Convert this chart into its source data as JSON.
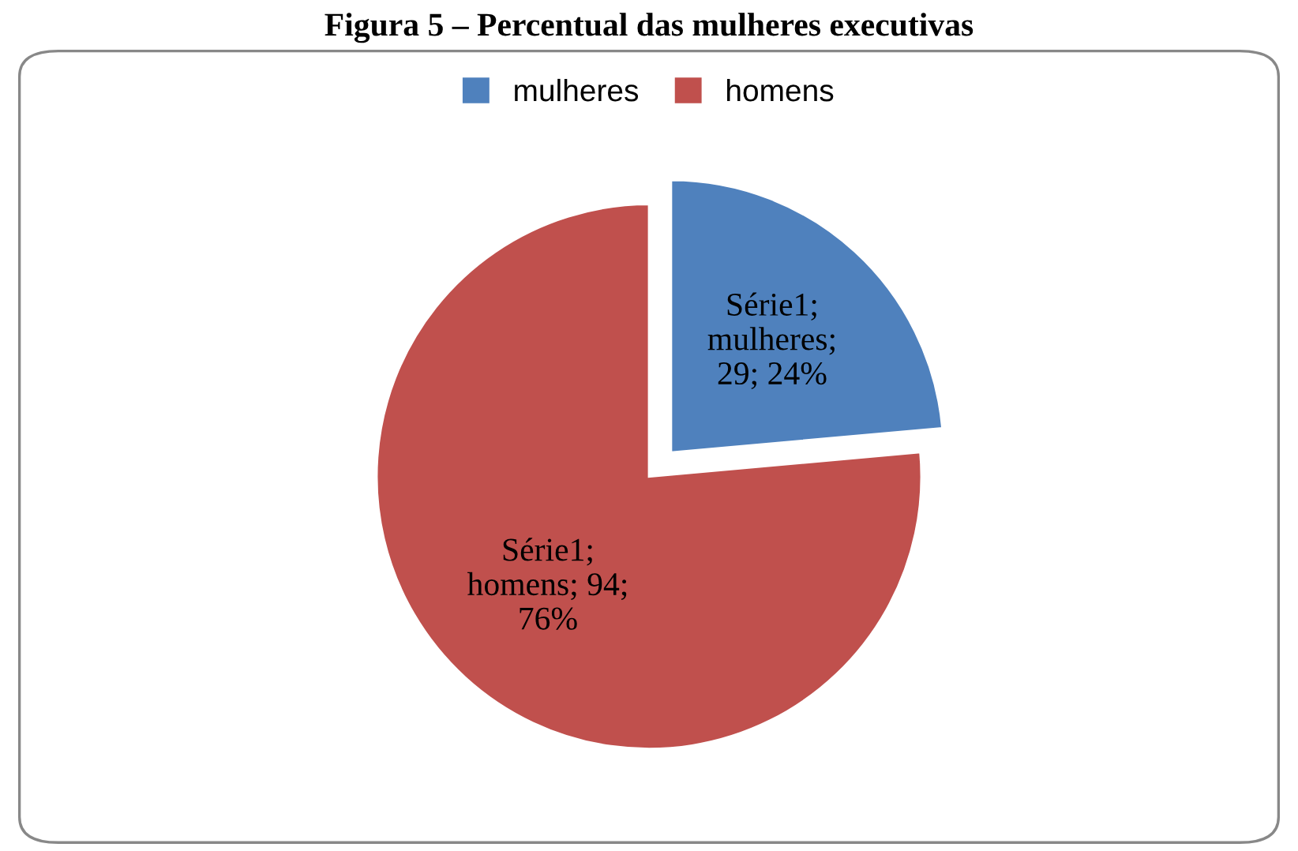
{
  "chart_data": {
    "type": "pie",
    "title": "Figura 5 – Percentual das mulheres executivas",
    "categories": [
      "mulheres",
      "homens"
    ],
    "values": [
      29,
      94
    ],
    "colors": [
      "#4f81bd",
      "#c0504d"
    ],
    "value_labels": [
      "Série1;\nmulheres;\n29; 24%",
      "Série1;\nhomens; 94;\n76%"
    ],
    "legend": "top"
  }
}
